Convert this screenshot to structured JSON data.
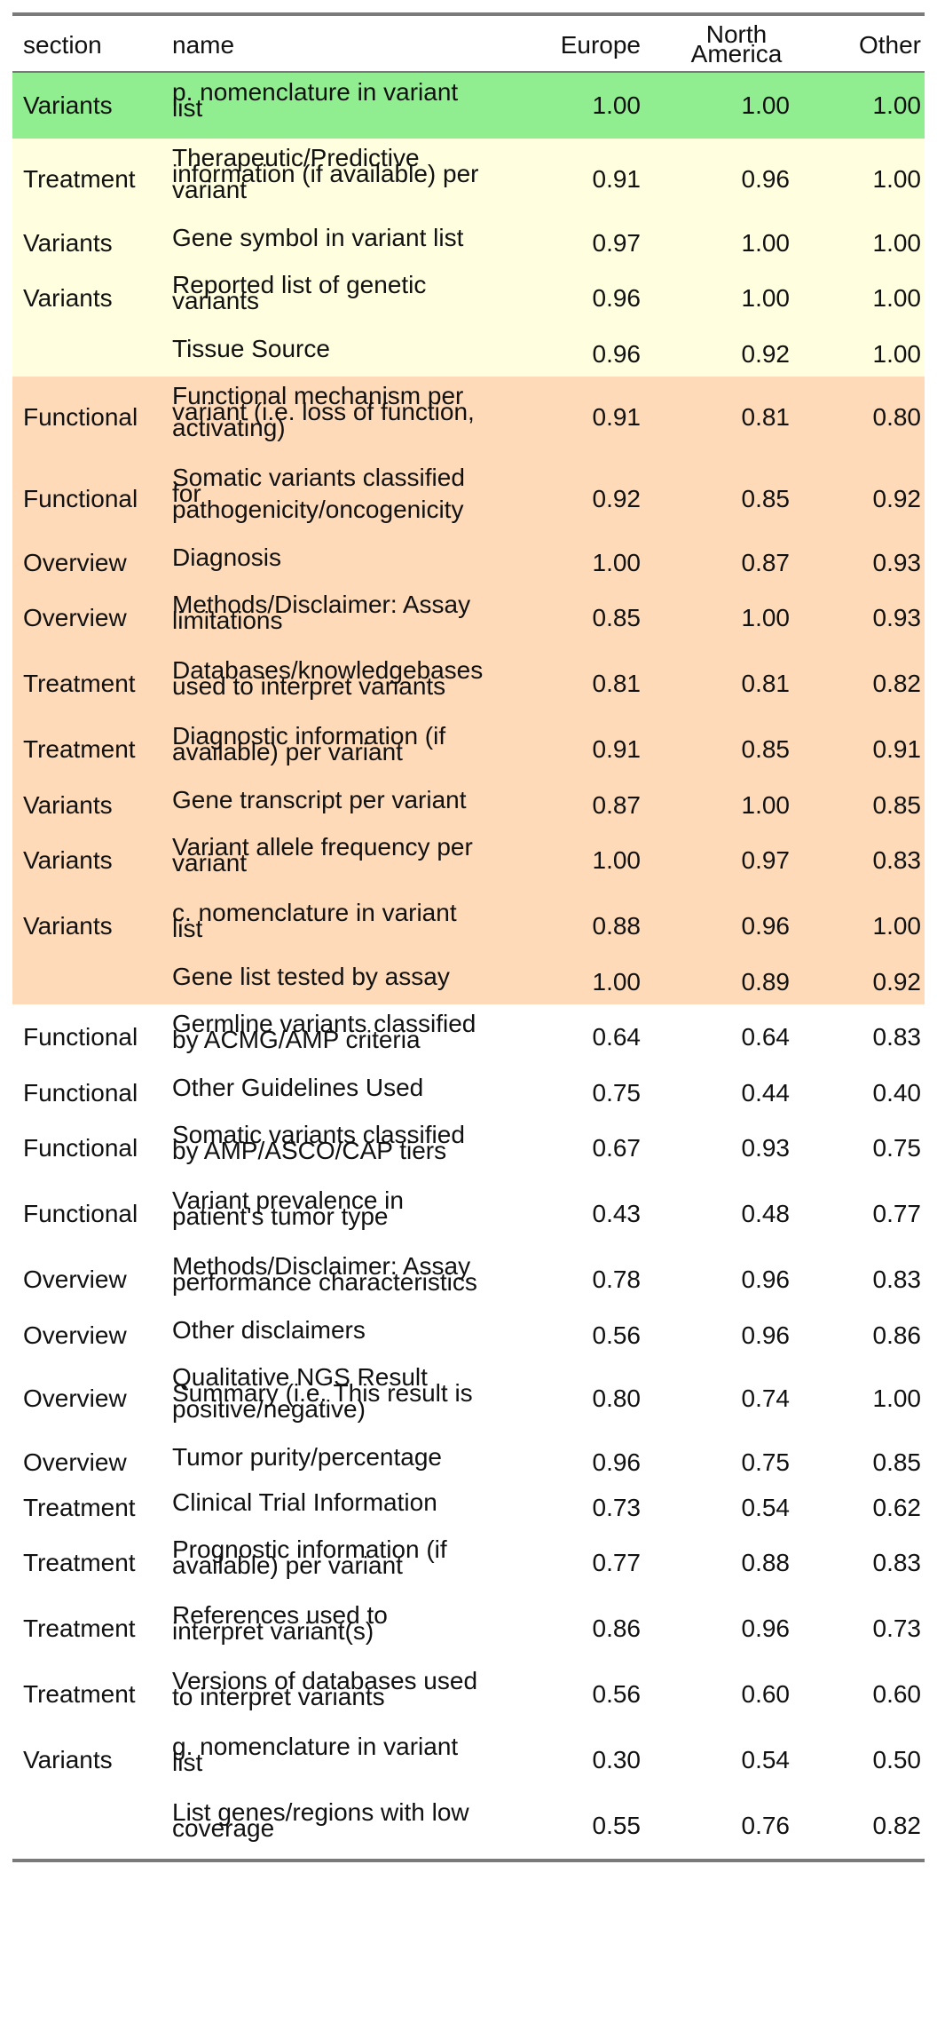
{
  "table": {
    "headers": {
      "section": "section",
      "name": "name",
      "europe": "Europe",
      "north_america_line1": "North",
      "north_america_line2": "America",
      "other": "Other"
    },
    "colors": {
      "green": "#90ee90",
      "yellow": "#ffffe0",
      "orange": "#ffdab9",
      "white": "#ffffff",
      "rule": "#7a7a7a"
    },
    "rows": [
      {
        "section": "Variants",
        "name_lines": [
          "p. nomenclature in variant",
          "list"
        ],
        "europe": "1.00",
        "north_america": "1.00",
        "other": "1.00",
        "band": "green"
      },
      {
        "section": "Treatment",
        "name_lines": [
          "Therapeutic/Predictive",
          "information (if available) per",
          "variant"
        ],
        "europe": "0.91",
        "north_america": "0.96",
        "other": "1.00",
        "band": "yellow"
      },
      {
        "section": "Variants",
        "name_lines": [
          "Gene symbol in variant list"
        ],
        "europe": "0.97",
        "north_america": "1.00",
        "other": "1.00",
        "band": "yellow"
      },
      {
        "section": "Variants",
        "name_lines": [
          "Reported list of genetic",
          "variants"
        ],
        "europe": "0.96",
        "north_america": "1.00",
        "other": "1.00",
        "band": "yellow"
      },
      {
        "section": "",
        "name_lines": [
          "Tissue Source"
        ],
        "europe": "0.96",
        "north_america": "0.92",
        "other": "1.00",
        "band": "yellow"
      },
      {
        "section": "Functional",
        "name_lines": [
          "Functional mechanism per",
          "variant (i.e. loss of function,",
          "activating)"
        ],
        "europe": "0.91",
        "north_america": "0.81",
        "other": "0.80",
        "band": "orange"
      },
      {
        "section": "Functional",
        "name_lines": [
          "Somatic variants classified",
          "for",
          "pathogenicity/oncogenicity"
        ],
        "europe": "0.92",
        "north_america": "0.85",
        "other": "0.92",
        "band": "orange"
      },
      {
        "section": "Overview",
        "name_lines": [
          "Diagnosis"
        ],
        "europe": "1.00",
        "north_america": "0.87",
        "other": "0.93",
        "band": "orange"
      },
      {
        "section": "Overview",
        "name_lines": [
          "Methods/Disclaimer: Assay",
          "limitations"
        ],
        "europe": "0.85",
        "north_america": "1.00",
        "other": "0.93",
        "band": "orange"
      },
      {
        "section": "Treatment",
        "name_lines": [
          "Databases/knowledgebases",
          "used to interpret variants"
        ],
        "europe": "0.81",
        "north_america": "0.81",
        "other": "0.82",
        "band": "orange"
      },
      {
        "section": "Treatment",
        "name_lines": [
          "Diagnostic information (if",
          "available) per variant"
        ],
        "europe": "0.91",
        "north_america": "0.85",
        "other": "0.91",
        "band": "orange"
      },
      {
        "section": "Variants",
        "name_lines": [
          "Gene transcript per variant"
        ],
        "europe": "0.87",
        "north_america": "1.00",
        "other": "0.85",
        "band": "orange"
      },
      {
        "section": "Variants",
        "name_lines": [
          "Variant allele frequency per",
          "variant"
        ],
        "europe": "1.00",
        "north_america": "0.97",
        "other": "0.83",
        "band": "orange"
      },
      {
        "section": "Variants",
        "name_lines": [
          "c. nomenclature in variant",
          "list"
        ],
        "europe": "0.88",
        "north_america": "0.96",
        "other": "1.00",
        "band": "orange"
      },
      {
        "section": "",
        "name_lines": [
          "Gene list tested by assay"
        ],
        "europe": "1.00",
        "north_america": "0.89",
        "other": "0.92",
        "band": "orange"
      },
      {
        "section": "Functional",
        "name_lines": [
          "Germline variants classified",
          "by ACMG/AMP criteria"
        ],
        "europe": "0.64",
        "north_america": "0.64",
        "other": "0.83",
        "band": "white"
      },
      {
        "section": "Functional",
        "name_lines": [
          "Other Guidelines Used"
        ],
        "europe": "0.75",
        "north_america": "0.44",
        "other": "0.40",
        "band": "white"
      },
      {
        "section": "Functional",
        "name_lines": [
          "Somatic variants classified",
          "by AMP/ASCO/CAP tiers"
        ],
        "europe": "0.67",
        "north_america": "0.93",
        "other": "0.75",
        "band": "white"
      },
      {
        "section": "Functional",
        "name_lines": [
          "Variant prevalence in",
          "patient's tumor type"
        ],
        "europe": "0.43",
        "north_america": "0.48",
        "other": "0.77",
        "band": "white"
      },
      {
        "section": "Overview",
        "name_lines": [
          "Methods/Disclaimer: Assay",
          "performance characteristics"
        ],
        "europe": "0.78",
        "north_america": "0.96",
        "other": "0.83",
        "band": "white"
      },
      {
        "section": "Overview",
        "name_lines": [
          "Other disclaimers"
        ],
        "europe": "0.56",
        "north_america": "0.96",
        "other": "0.86",
        "band": "white"
      },
      {
        "section": "Overview",
        "name_lines": [
          "Qualitative NGS Result",
          "Summary (i.e. This result is",
          "positive/negative)"
        ],
        "europe": "0.80",
        "north_america": "0.74",
        "other": "1.00",
        "band": "white"
      },
      {
        "section": "Overview",
        "name_lines": [
          "Tumor purity/percentage"
        ],
        "europe": "0.96",
        "north_america": "0.75",
        "other": "0.85",
        "band": "white"
      },
      {
        "section": "Treatment",
        "name_lines": [
          "Clinical Trial Information"
        ],
        "europe": "0.73",
        "north_america": "0.54",
        "other": "0.62",
        "band": "white"
      },
      {
        "section": "Treatment",
        "name_lines": [
          "Prognostic information (if",
          "available) per variant"
        ],
        "europe": "0.77",
        "north_america": "0.88",
        "other": "0.83",
        "band": "white"
      },
      {
        "section": "Treatment",
        "name_lines": [
          "References used to",
          "interpret variant(s)"
        ],
        "europe": "0.86",
        "north_america": "0.96",
        "other": "0.73",
        "band": "white"
      },
      {
        "section": "Treatment",
        "name_lines": [
          "Versions of databases used",
          "to interpret variants"
        ],
        "europe": "0.56",
        "north_america": "0.60",
        "other": "0.60",
        "band": "white"
      },
      {
        "section": "Variants",
        "name_lines": [
          "g. nomenclature in variant",
          "list"
        ],
        "europe": "0.30",
        "north_america": "0.54",
        "other": "0.50",
        "band": "white"
      },
      {
        "section": "",
        "name_lines": [
          "List genes/regions with low",
          "coverage"
        ],
        "europe": "0.55",
        "north_america": "0.76",
        "other": "0.82",
        "band": "white"
      }
    ]
  }
}
